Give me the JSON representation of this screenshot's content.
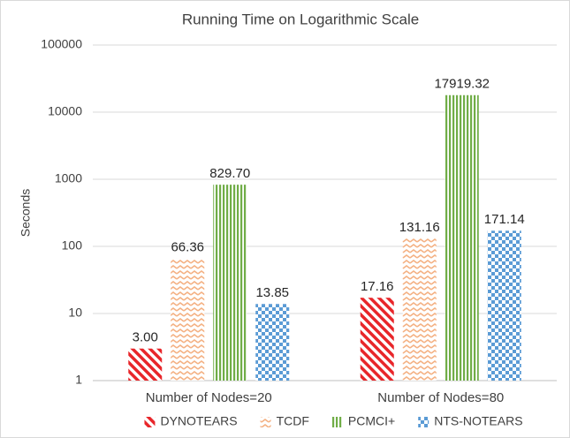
{
  "chart_data": {
    "type": "bar",
    "title": "Running Time on Logarithmic Scale",
    "y_label": "Seconds",
    "categories": [
      "Number of Nodes=20",
      "Number of Nodes=80"
    ],
    "series": [
      {
        "name": "DYNOTEARS",
        "color": "#e8262a",
        "pattern": "diagonal",
        "values": [
          3.0,
          17.16
        ],
        "value_labels": [
          "3.00",
          "17.16"
        ]
      },
      {
        "name": "TCDF",
        "color": "#f4b183",
        "pattern": "zigzag",
        "values": [
          66.36,
          131.16
        ],
        "value_labels": [
          "66.36",
          "131.16"
        ]
      },
      {
        "name": "PCMCI+",
        "color": "#70ad47",
        "pattern": "vertical",
        "values": [
          829.7,
          17919.32
        ],
        "value_labels": [
          "829.70",
          "17919.32"
        ]
      },
      {
        "name": "NTS-NOTEARS",
        "color": "#5b9bd5",
        "pattern": "checker",
        "values": [
          13.85,
          171.14
        ],
        "value_labels": [
          "13.85",
          "171.14"
        ]
      }
    ],
    "ylim": [
      1,
      100000
    ],
    "yticks": [
      1,
      10,
      100,
      1000,
      10000,
      100000
    ],
    "log_scale": true,
    "grid": true,
    "legend": "bottom"
  }
}
